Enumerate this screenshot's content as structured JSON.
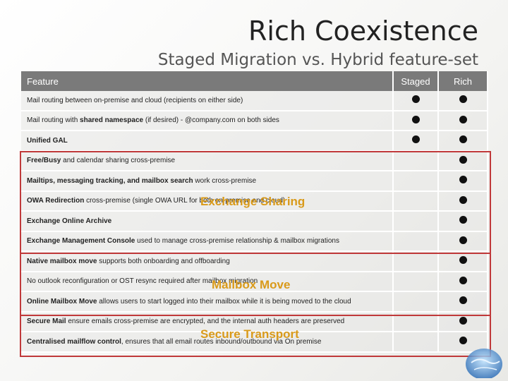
{
  "title": "Rich Coexistence",
  "subtitle": "Staged Migration vs. Hybrid feature-set",
  "table": {
    "headers": [
      "Feature",
      "Staged",
      "Rich"
    ],
    "rows": [
      {
        "pre": "Mail routing between on-premise and cloud (recipients on either side)",
        "bold": "",
        "post": "",
        "staged": true,
        "rich": true
      },
      {
        "pre": "Mail routing with ",
        "bold": "shared namespace",
        "post": " (if desired) - @company.com on both sides",
        "staged": true,
        "rich": true
      },
      {
        "pre": "",
        "bold": "Unified GAL",
        "post": "",
        "staged": true,
        "rich": true
      },
      {
        "pre": "",
        "bold": "Free/Busy",
        "post": " and calendar sharing cross-premise",
        "staged": false,
        "rich": true
      },
      {
        "pre": "",
        "bold": "Mailtips, messaging tracking, and mailbox search",
        "post": " work cross-premise",
        "staged": false,
        "rich": true
      },
      {
        "pre": "",
        "bold": "OWA Redirection",
        "post": " cross-premise (single OWA URL for both on-premise and cloud)",
        "staged": false,
        "rich": true
      },
      {
        "pre": "",
        "bold": "Exchange Online Archive",
        "post": "",
        "staged": false,
        "rich": true
      },
      {
        "pre": "",
        "bold": "Exchange Management Console",
        "post": " used to manage cross-premise  relationship & mailbox migrations",
        "staged": false,
        "rich": true
      },
      {
        "pre": "",
        "bold": "Native mailbox move",
        "post": " supports both onboarding and offboarding",
        "staged": false,
        "rich": true
      },
      {
        "pre": "No outlook reconfiguration or OST resync required after mailbox migration",
        "bold": "",
        "post": "",
        "staged": false,
        "rich": true
      },
      {
        "pre": "",
        "bold": "Online Mailbox Move",
        "post": " allows users to start logged into their mailbox while it is being moved to the cloud",
        "staged": false,
        "rich": true
      },
      {
        "pre": "",
        "bold": "Secure Mail",
        "post": " ensure emails cross-premise are encrypted, and the internal auth headers are preserved",
        "staged": false,
        "rich": true
      },
      {
        "pre": "",
        "bold": "Centralised mailflow control",
        "post": ", ensures that all email routes inbound/outbound via On premise",
        "staged": false,
        "rich": true
      }
    ]
  },
  "overlays": [
    "Exchange Sharing",
    "Mailbox Move",
    "Secure Transport"
  ],
  "colors": {
    "header": "#7a7a7a",
    "box": "#c0393a",
    "overlay": "#d99a1a"
  }
}
